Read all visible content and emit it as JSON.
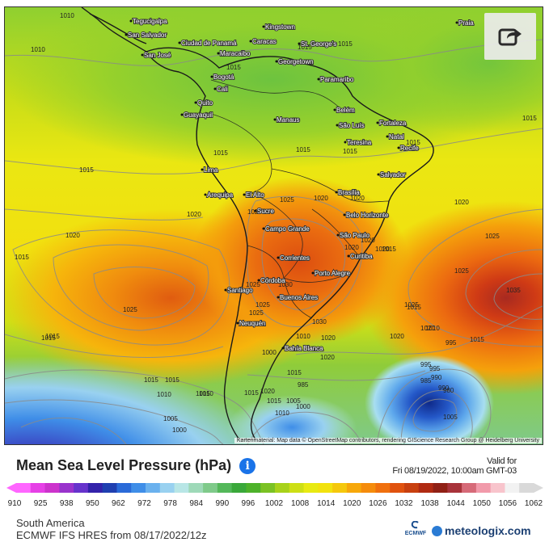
{
  "map": {
    "attribution": "Kartenmaterial: Map data © OpenStreetMap contributors, rendering GIScience Research Group @ Heidelberg University",
    "cities": [
      {
        "name": "Tegucigalpa"
      },
      {
        "name": "San Salvador"
      },
      {
        "name": "Ciudad de Panamá"
      },
      {
        "name": "San José"
      },
      {
        "name": "Caracas"
      },
      {
        "name": "St. George's"
      },
      {
        "name": "Kingstown"
      },
      {
        "name": "Maracaibo"
      },
      {
        "name": "Georgetown"
      },
      {
        "name": "Paramaribo"
      },
      {
        "name": "Bogotá"
      },
      {
        "name": "Cali"
      },
      {
        "name": "Quito"
      },
      {
        "name": "Guayaquil"
      },
      {
        "name": "Manaus"
      },
      {
        "name": "Belém"
      },
      {
        "name": "São Luís"
      },
      {
        "name": "Fortaleza"
      },
      {
        "name": "Teresina"
      },
      {
        "name": "Natal"
      },
      {
        "name": "Recife"
      },
      {
        "name": "Salvador"
      },
      {
        "name": "Lima"
      },
      {
        "name": "Arequipa"
      },
      {
        "name": "El Alto"
      },
      {
        "name": "Brasília"
      },
      {
        "name": "Sucre"
      },
      {
        "name": "Belo Horizonte"
      },
      {
        "name": "Campo Grande"
      },
      {
        "name": "São Paulo"
      },
      {
        "name": "Curitiba"
      },
      {
        "name": "Corrientes"
      },
      {
        "name": "Porto Alegre"
      },
      {
        "name": "Córdoba"
      },
      {
        "name": "Santiago"
      },
      {
        "name": "Buenos Aires"
      },
      {
        "name": "Neuquén"
      },
      {
        "name": "Bahía Blanca"
      },
      {
        "name": "Praia"
      }
    ],
    "isobar_labels": [
      "1010",
      "1010",
      "1015",
      "1015",
      "1015",
      "1015",
      "1015",
      "1015",
      "1015",
      "1015",
      "1015",
      "1015",
      "1015",
      "1015",
      "1020",
      "1020",
      "1020",
      "1020",
      "1020",
      "1020",
      "1020",
      "1020",
      "1025",
      "1025",
      "1025",
      "1025",
      "1025",
      "1025",
      "1030",
      "1030",
      "1035",
      "1025",
      "1025",
      "1020",
      "1020",
      "1015",
      "1015",
      "1015",
      "1015",
      "1010",
      "1010",
      "1005",
      "1005",
      "1000",
      "995",
      "990",
      "985",
      "990",
      "995",
      "1000",
      "1005",
      "1000",
      "985",
      "995",
      "980",
      "1010",
      "1015",
      "1020",
      "1010",
      "1015",
      "1015",
      "1020",
      "1025",
      "1025",
      "1020",
      "1015",
      "1010",
      "1015"
    ]
  },
  "share_button": {
    "icon": "share-icon"
  },
  "title": "Mean Sea Level Pressure (hPa)",
  "info_icon": "i",
  "valid": {
    "line1": "Valid for",
    "line2": "Fri 08/19/2022, 10:00am GMT-03"
  },
  "legend": {
    "ticks": [
      "910",
      "925",
      "938",
      "950",
      "962",
      "972",
      "978",
      "984",
      "990",
      "996",
      "1002",
      "1008",
      "1014",
      "1020",
      "1026",
      "1032",
      "1038",
      "1044",
      "1050",
      "1056",
      "1062"
    ],
    "colors": [
      "#ff66ff",
      "#e640e6",
      "#cc33cc",
      "#9933cc",
      "#6633cc",
      "#3322aa",
      "#1f3fb0",
      "#2a6ad8",
      "#3f8ee8",
      "#6ab1ee",
      "#99d1f0",
      "#b8e6e6",
      "#9ed9b8",
      "#7fca8a",
      "#54b85a",
      "#3aa83a",
      "#4db22a",
      "#7bc224",
      "#a8d21a",
      "#cddf15",
      "#e8ea12",
      "#f2e20e",
      "#f5c80c",
      "#f7a80a",
      "#f58c0c",
      "#f0700e",
      "#e0520e",
      "#c8400f",
      "#b02a12",
      "#902015",
      "#a8333a",
      "#d66a78",
      "#f19aaa",
      "#f8c4cc",
      "#f2f2f2",
      "#d9d9d9"
    ]
  },
  "footer": {
    "region": "South America",
    "model": "ECMWF IFS HRES from 08/17/2022/12z",
    "ecmwf": "ECMWF",
    "brand": "meteologix.com"
  }
}
